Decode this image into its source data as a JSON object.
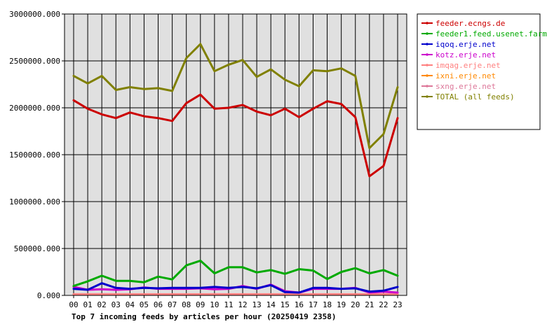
{
  "chart_data": {
    "type": "line",
    "title": "Top 7 incoming feeds by articles per hour (20250419 2358)",
    "xlabel": "",
    "ylabel": "",
    "ylim": [
      0,
      3000000
    ],
    "yticks": [
      "0.000",
      "500000.000",
      "1000000.000",
      "1500000.000",
      "2000000.000",
      "2500000.000",
      "3000000.000"
    ],
    "categories": [
      "00",
      "01",
      "02",
      "03",
      "04",
      "05",
      "06",
      "07",
      "08",
      "09",
      "10",
      "11",
      "12",
      "13",
      "14",
      "15",
      "16",
      "17",
      "18",
      "19",
      "20",
      "21",
      "22",
      "23"
    ],
    "grid": true,
    "legend_position": "right",
    "series": [
      {
        "name": "feeder.ecngs.de",
        "color": "#cc0000",
        "values": [
          2080000,
          1990000,
          1930000,
          1890000,
          1950000,
          1910000,
          1890000,
          1860000,
          2050000,
          2140000,
          1990000,
          2000000,
          2030000,
          1960000,
          1920000,
          1990000,
          1900000,
          1990000,
          2070000,
          2040000,
          1900000,
          1270000,
          1380000,
          1890000
        ]
      },
      {
        "name": "feeder1.feed.usenet.farm",
        "color": "#00aa00",
        "values": [
          100000,
          150000,
          210000,
          155000,
          155000,
          140000,
          200000,
          170000,
          320000,
          370000,
          235000,
          300000,
          300000,
          245000,
          270000,
          230000,
          280000,
          265000,
          175000,
          250000,
          290000,
          235000,
          270000,
          210000
        ]
      },
      {
        "name": "iqoq.erje.net",
        "color": "#0000cc",
        "values": [
          70000,
          60000,
          130000,
          80000,
          70000,
          80000,
          75000,
          80000,
          80000,
          80000,
          90000,
          80000,
          90000,
          75000,
          110000,
          35000,
          30000,
          80000,
          80000,
          70000,
          75000,
          40000,
          50000,
          90000
        ]
      },
      {
        "name": "kotz.erje.net",
        "color": "#cc00cc",
        "values": [
          90000,
          60000,
          65000,
          60000,
          65000,
          85000,
          70000,
          70000,
          70000,
          75000,
          65000,
          70000,
          100000,
          70000,
          115000,
          45000,
          30000,
          70000,
          70000,
          70000,
          80000,
          30000,
          40000,
          30000
        ]
      },
      {
        "name": "imqag.erje.net",
        "color": "#ff8080",
        "values": [
          12000,
          12000,
          12000,
          12000,
          12000,
          12000,
          12000,
          12000,
          12000,
          12000,
          12000,
          12000,
          12000,
          12000,
          12000,
          12000,
          12000,
          12000,
          12000,
          12000,
          12000,
          12000,
          12000,
          12000
        ]
      },
      {
        "name": "ixni.erje.net",
        "color": "#ff8800",
        "values": [
          10000,
          10000,
          10000,
          10000,
          10000,
          10000,
          10000,
          10000,
          10000,
          10000,
          10000,
          10000,
          10000,
          10000,
          10000,
          10000,
          10000,
          10000,
          10000,
          10000,
          10000,
          10000,
          10000,
          10000
        ]
      },
      {
        "name": "sxng.erje.net",
        "color": "#dd7799",
        "values": [
          8000,
          8000,
          8000,
          8000,
          8000,
          8000,
          8000,
          8000,
          8000,
          8000,
          8000,
          8000,
          8000,
          8000,
          8000,
          8000,
          8000,
          8000,
          8000,
          8000,
          8000,
          8000,
          8000,
          8000
        ]
      },
      {
        "name": "TOTAL (all feeds)",
        "color": "#808000",
        "values": [
          2340000,
          2260000,
          2340000,
          2190000,
          2220000,
          2200000,
          2210000,
          2180000,
          2530000,
          2680000,
          2390000,
          2460000,
          2510000,
          2330000,
          2410000,
          2300000,
          2230000,
          2400000,
          2390000,
          2420000,
          2340000,
          1570000,
          1720000,
          2220000
        ]
      }
    ]
  }
}
